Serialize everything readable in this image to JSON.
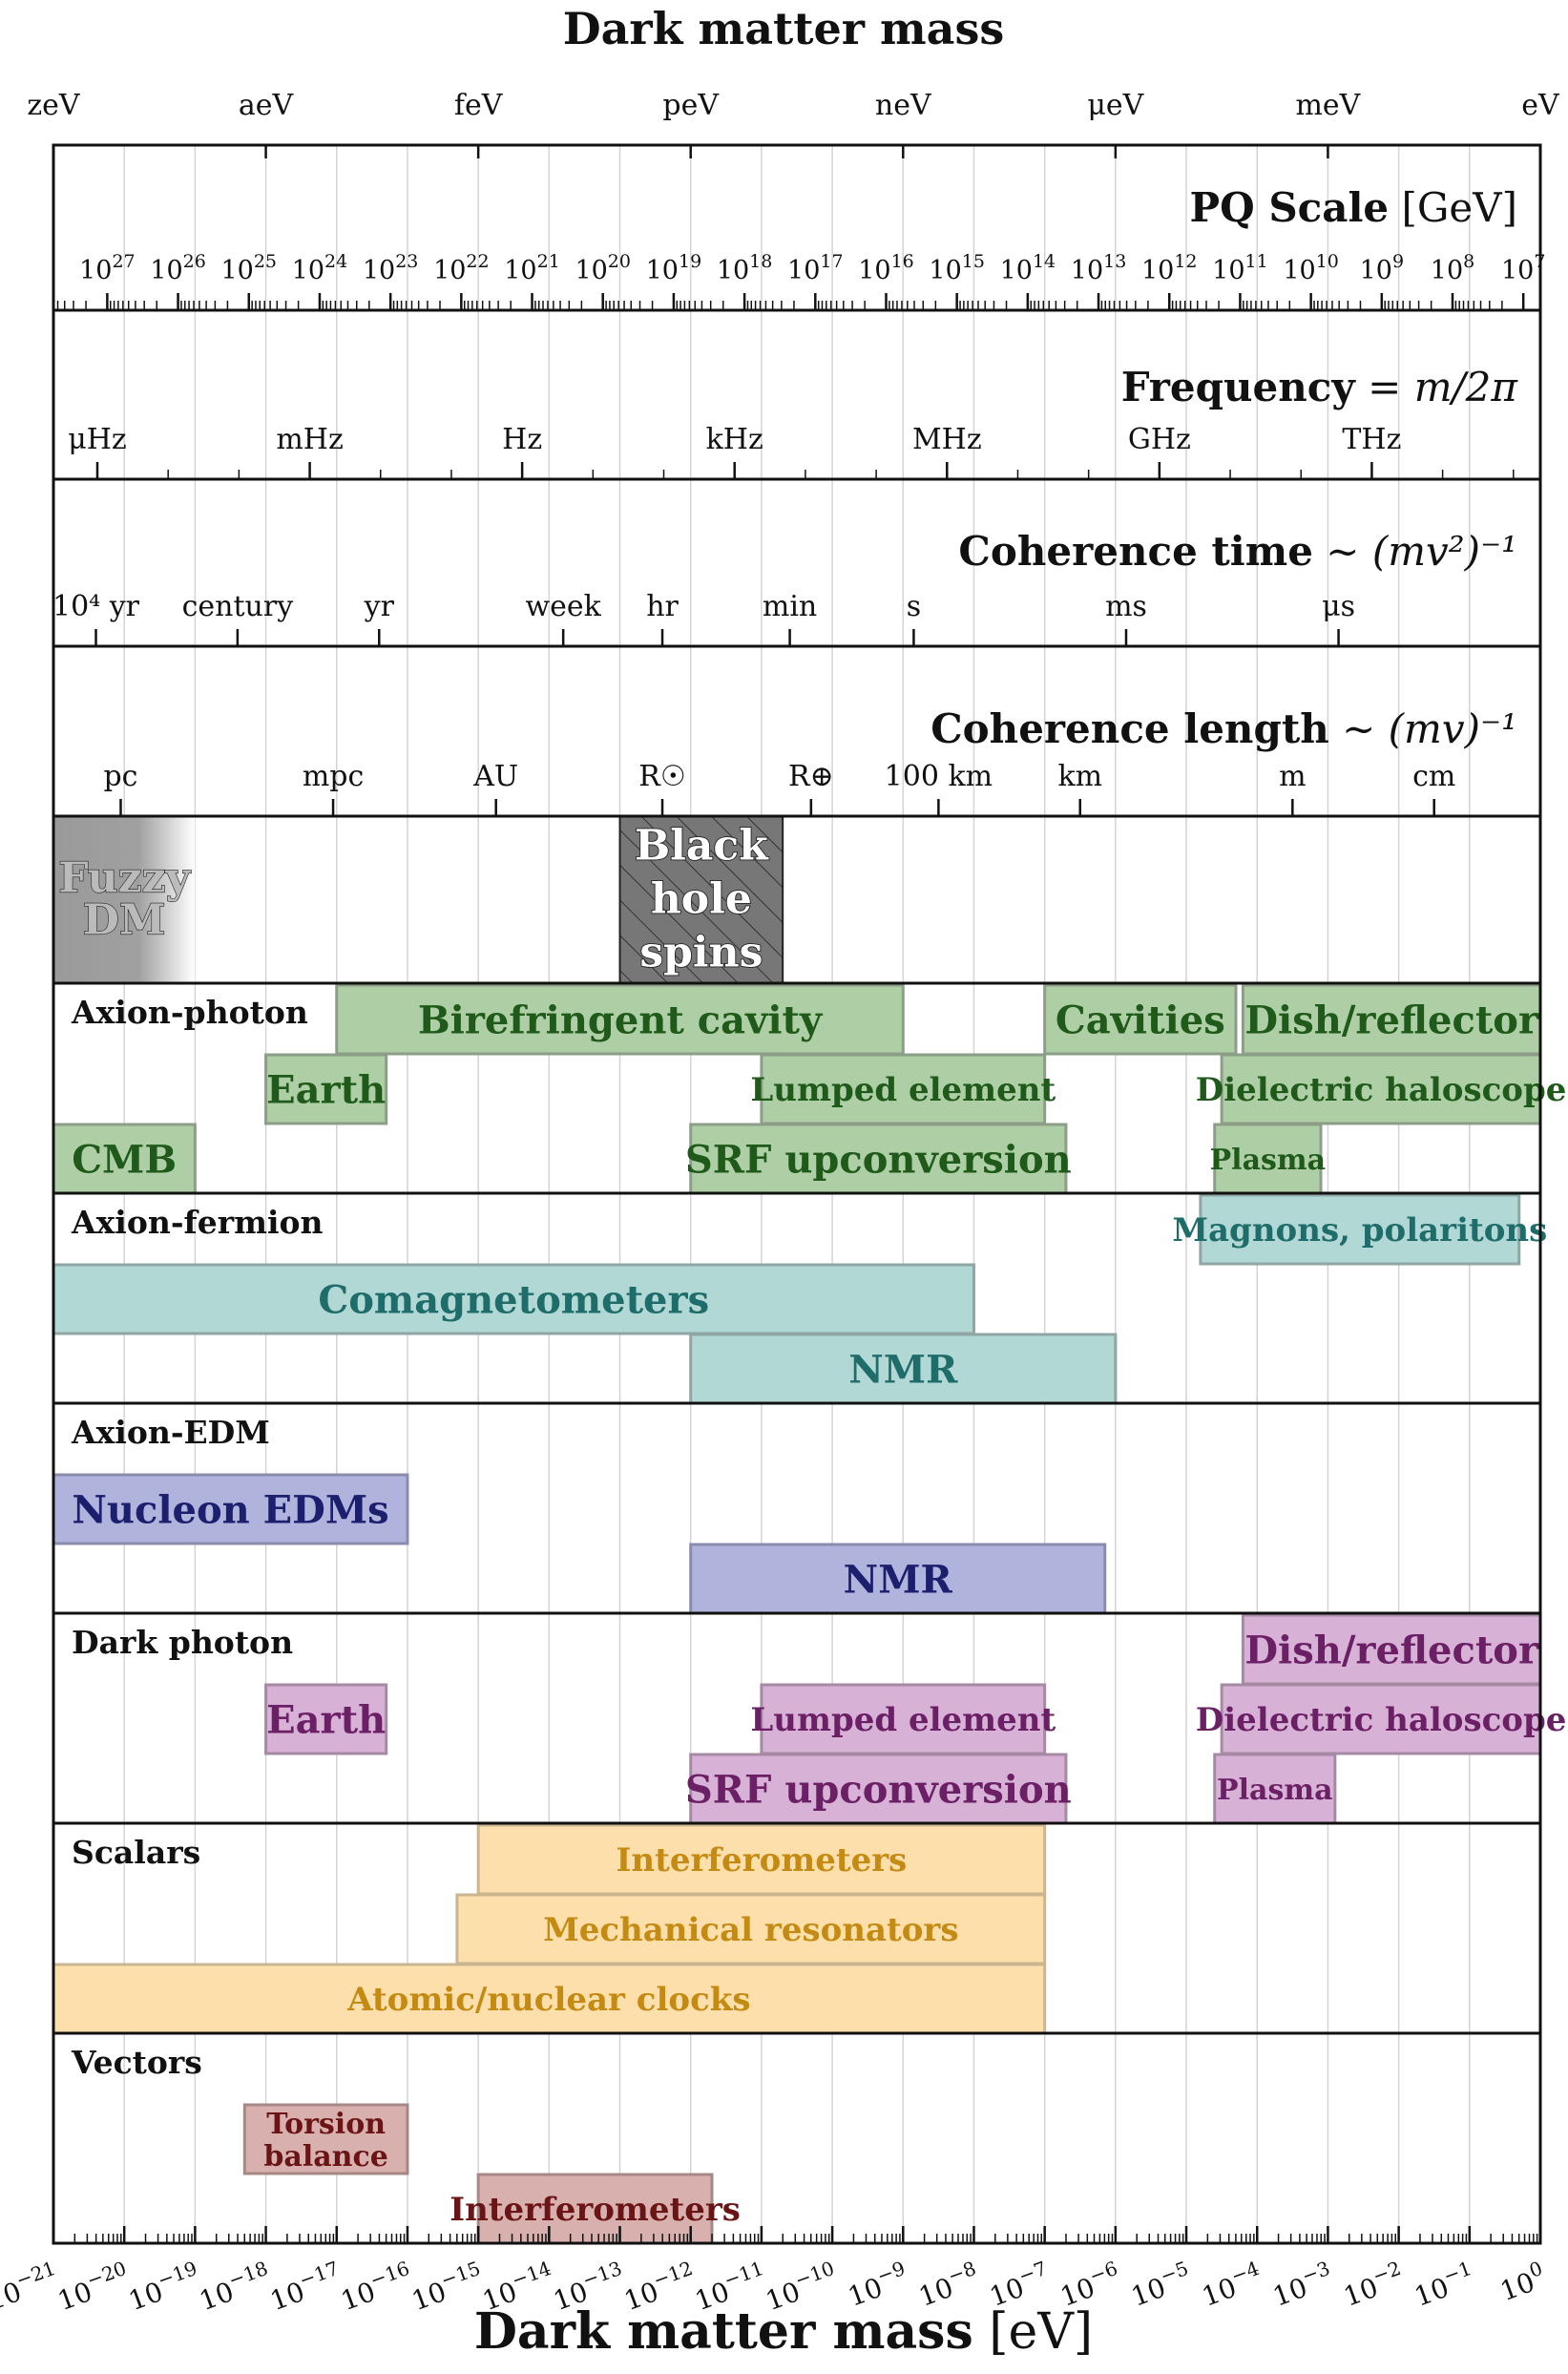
{
  "title_top": "Dark matter mass",
  "title_bottom": "Dark matter mass [eV]",
  "axis": {
    "min_exp": -21,
    "max_exp": 0
  },
  "mass_units": [
    {
      "label": "zeV",
      "exp": -21
    },
    {
      "label": "aeV",
      "exp": -18
    },
    {
      "label": "feV",
      "exp": -15
    },
    {
      "label": "peV",
      "exp": -12
    },
    {
      "label": "neV",
      "exp": -9
    },
    {
      "label": "μeV",
      "exp": -6
    },
    {
      "label": "meV",
      "exp": -3
    },
    {
      "label": "eV",
      "exp": 0
    }
  ],
  "pq": {
    "title": "PQ Scale",
    "unit": "[GeV]",
    "ticks": [
      {
        "label": "10",
        "sup": "27",
        "exp": -20.24
      },
      {
        "label": "10",
        "sup": "26",
        "exp": -19.24
      },
      {
        "label": "10",
        "sup": "25",
        "exp": -18.24
      },
      {
        "label": "10",
        "sup": "24",
        "exp": -17.24
      },
      {
        "label": "10",
        "sup": "23",
        "exp": -16.24
      },
      {
        "label": "10",
        "sup": "22",
        "exp": -15.24
      },
      {
        "label": "10",
        "sup": "21",
        "exp": -14.24
      },
      {
        "label": "10",
        "sup": "20",
        "exp": -13.24
      },
      {
        "label": "10",
        "sup": "19",
        "exp": -12.24
      },
      {
        "label": "10",
        "sup": "18",
        "exp": -11.24
      },
      {
        "label": "10",
        "sup": "17",
        "exp": -10.24
      },
      {
        "label": "10",
        "sup": "16",
        "exp": -9.24
      },
      {
        "label": "10",
        "sup": "15",
        "exp": -8.24
      },
      {
        "label": "10",
        "sup": "14",
        "exp": -7.24
      },
      {
        "label": "10",
        "sup": "13",
        "exp": -6.24
      },
      {
        "label": "10",
        "sup": "12",
        "exp": -5.24
      },
      {
        "label": "10",
        "sup": "11",
        "exp": -4.24
      },
      {
        "label": "10",
        "sup": "10",
        "exp": -3.24
      },
      {
        "label": "10",
        "sup": "9",
        "exp": -2.24
      },
      {
        "label": "10",
        "sup": "8",
        "exp": -1.24
      },
      {
        "label": "10",
        "sup": "7",
        "exp": -0.24
      }
    ]
  },
  "frequency": {
    "title": "Frequency",
    "eq": "= m/2π",
    "ticks": [
      {
        "label": "μHz",
        "exp": -20.38
      },
      {
        "label": "mHz",
        "exp": -17.38
      },
      {
        "label": "Hz",
        "exp": -14.38
      },
      {
        "label": "kHz",
        "exp": -11.38
      },
      {
        "label": "MHz",
        "exp": -8.38
      },
      {
        "label": "GHz",
        "exp": -5.38
      },
      {
        "label": "THz",
        "exp": -2.38
      }
    ],
    "minor_exps": [
      -19.38,
      -18.38,
      -16.38,
      -15.38,
      -13.38,
      -12.38,
      -10.38,
      -9.38,
      -7.38,
      -6.38,
      -4.38,
      -3.38,
      -1.38,
      -0.38
    ]
  },
  "coherence_time": {
    "title": "Coherence time",
    "eq": "∼ (mv²)⁻¹",
    "ticks": [
      {
        "label": "10⁴ yr",
        "exp": -20.4
      },
      {
        "label": "century",
        "exp": -18.4
      },
      {
        "label": "yr",
        "exp": -16.4
      },
      {
        "label": "week",
        "exp": -13.8
      },
      {
        "label": "hr",
        "exp": -12.4
      },
      {
        "label": "min",
        "exp": -10.6
      },
      {
        "label": "s",
        "exp": -8.85
      },
      {
        "label": "ms",
        "exp": -5.85
      },
      {
        "label": "μs",
        "exp": -2.85
      }
    ]
  },
  "coherence_length": {
    "title": "Coherence length",
    "eq": "∼ (mv)⁻¹",
    "ticks": [
      {
        "label": "pc",
        "exp": -20.05
      },
      {
        "label": "mpc",
        "exp": -17.05
      },
      {
        "label": "AU",
        "exp": -14.75
      },
      {
        "label": "R☉",
        "exp": -12.4
      },
      {
        "label": "R⊕",
        "exp": -10.3
      },
      {
        "label": "100 km",
        "exp": -8.5
      },
      {
        "label": "km",
        "exp": -6.5
      },
      {
        "label": "m",
        "exp": -3.5
      },
      {
        "label": "cm",
        "exp": -1.5
      }
    ]
  },
  "astro": [
    {
      "lines": [
        "Fuzzy",
        "DM"
      ],
      "from": -21,
      "to": -19,
      "style": "fuzzy"
    },
    {
      "lines": [
        "Black",
        "hole",
        "spins"
      ],
      "from": -13,
      "to": -10.7,
      "style": "hatch"
    }
  ],
  "sections": [
    {
      "name": "Axion-photon",
      "color": "green",
      "bars": [
        {
          "label": "Birefringent cavity",
          "from": -17,
          "to": -9,
          "row": 0,
          "size": "l"
        },
        {
          "label": "Cavities",
          "from": -7,
          "to": -4.3,
          "row": 0,
          "size": "l"
        },
        {
          "label": "Dish/reflector",
          "from": -4.2,
          "to": 0,
          "row": 0,
          "size": "l"
        },
        {
          "label": "Earth",
          "from": -18,
          "to": -16.3,
          "row": 1,
          "size": "l"
        },
        {
          "label": "Lumped element",
          "from": -11,
          "to": -7,
          "row": 1,
          "size": "m"
        },
        {
          "label": "Dielectric haloscope",
          "from": -4.5,
          "to": 0,
          "row": 1,
          "size": "m"
        },
        {
          "label": "CMB",
          "from": -21,
          "to": -19,
          "row": 2,
          "size": "l"
        },
        {
          "label": "SRF upconversion",
          "from": -12,
          "to": -6.7,
          "row": 2,
          "size": "l"
        },
        {
          "label": "Plasma",
          "from": -4.6,
          "to": -3.1,
          "row": 2,
          "size": "s"
        }
      ]
    },
    {
      "name": "Axion-fermion",
      "color": "teal",
      "bars": [
        {
          "label": "Magnons, polaritons",
          "from": -4.8,
          "to": -0.3,
          "row": 0,
          "size": "m"
        },
        {
          "label": "Comagnetometers",
          "from": -21,
          "to": -8,
          "row": 1,
          "size": "l"
        },
        {
          "label": "NMR",
          "from": -12,
          "to": -6,
          "row": 2,
          "size": "l"
        }
      ]
    },
    {
      "name": "Axion-EDM",
      "color": "blue",
      "bars": [
        {
          "label": "Nucleon EDMs",
          "from": -21,
          "to": -16,
          "row": 1,
          "size": "l"
        },
        {
          "label": "NMR",
          "from": -12,
          "to": -6.15,
          "row": 2,
          "size": "l"
        }
      ]
    },
    {
      "name": "Dark photon",
      "color": "purple",
      "bars": [
        {
          "label": "Dish/reflector",
          "from": -4.2,
          "to": 0,
          "row": 0,
          "size": "l"
        },
        {
          "label": "Earth",
          "from": -18,
          "to": -16.3,
          "row": 1,
          "size": "l"
        },
        {
          "label": "Lumped element",
          "from": -11,
          "to": -7,
          "row": 1,
          "size": "m"
        },
        {
          "label": "Dielectric haloscope",
          "from": -4.5,
          "to": 0,
          "row": 1,
          "size": "m"
        },
        {
          "label": "SRF upconversion",
          "from": -12,
          "to": -6.7,
          "row": 2,
          "size": "l"
        },
        {
          "label": "Plasma",
          "from": -4.6,
          "to": -2.9,
          "row": 2,
          "size": "s"
        }
      ]
    },
    {
      "name": "Scalars",
      "color": "orange",
      "bars": [
        {
          "label": "Interferometers",
          "from": -15,
          "to": -7,
          "row": 0,
          "size": "m"
        },
        {
          "label": "Mechanical resonators",
          "from": -15.3,
          "to": -7,
          "row": 1,
          "size": "m"
        },
        {
          "label": "Atomic/nuclear clocks",
          "from": -21,
          "to": -7,
          "row": 2,
          "size": "m"
        }
      ]
    },
    {
      "name": "Vectors",
      "color": "red",
      "bars": [
        {
          "label": "Torsion balance",
          "lines": [
            "Torsion",
            "balance"
          ],
          "from": -18.3,
          "to": -16,
          "row": 1,
          "size": "s"
        },
        {
          "label": "Interferometers",
          "from": -15,
          "to": -11.7,
          "row": 2,
          "size": "m"
        }
      ]
    }
  ],
  "palette": {
    "green": {
      "fill": "#aecfa5",
      "stroke": "#8d9e88",
      "text": "#1f5a1a"
    },
    "teal": {
      "fill": "#b2d8d6",
      "stroke": "#8fa6a5",
      "text": "#1f6d6b"
    },
    "blue": {
      "fill": "#b0b3dc",
      "stroke": "#8a8cae",
      "text": "#1c1f6e"
    },
    "purple": {
      "fill": "#d8b1d6",
      "stroke": "#a68aa4",
      "text": "#6b1f65"
    },
    "orange": {
      "fill": "#fddfac",
      "stroke": "#c9b590",
      "text": "#c48a12"
    },
    "red": {
      "fill": "#d8b0ae",
      "stroke": "#a68886",
      "text": "#6b1416"
    }
  }
}
